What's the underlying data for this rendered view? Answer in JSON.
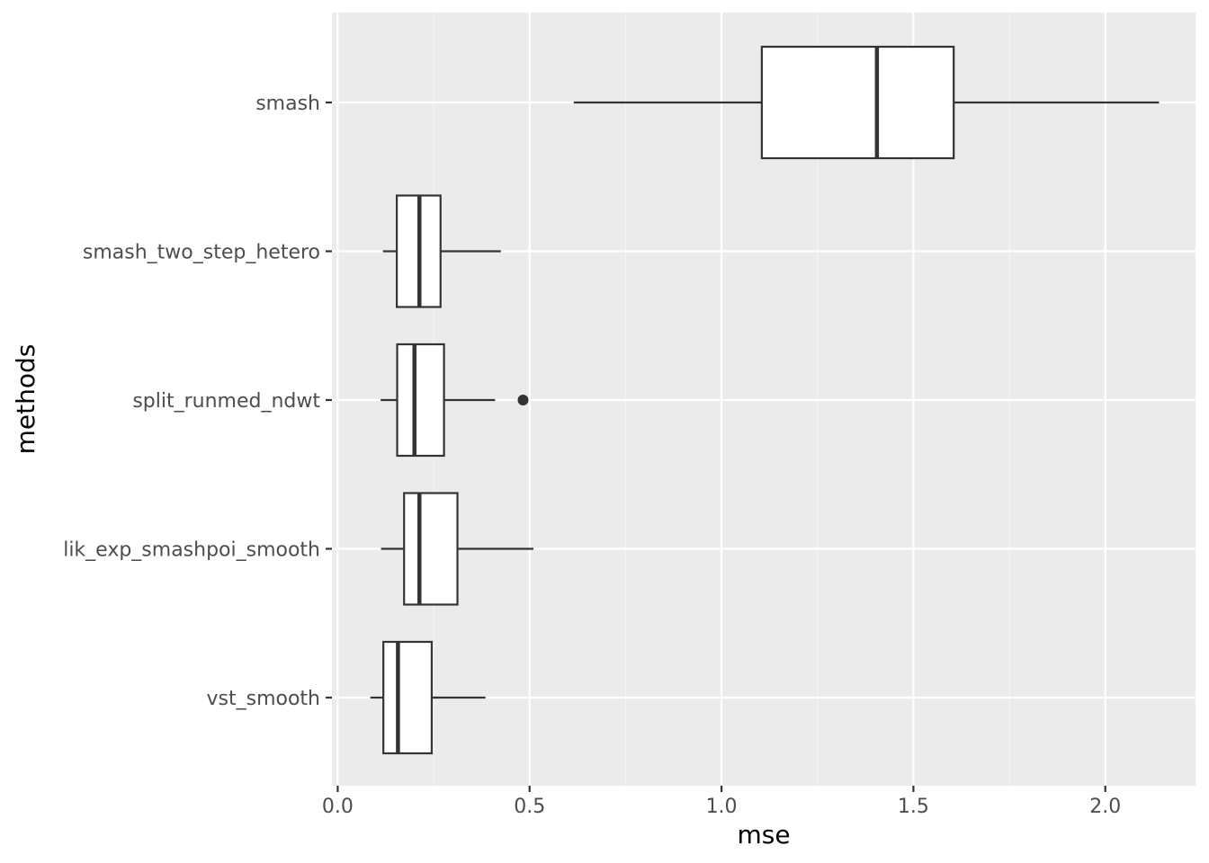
{
  "chart_data": {
    "type": "boxplot",
    "orientation": "horizontal",
    "xlabel": "mse",
    "ylabel": "methods",
    "xlim": [
      -0.015,
      2.235
    ],
    "x_ticks": [
      {
        "value": 0.0,
        "label": "0.0"
      },
      {
        "value": 0.5,
        "label": "0.5"
      },
      {
        "value": 1.0,
        "label": "1.0"
      },
      {
        "value": 1.5,
        "label": "1.5"
      },
      {
        "value": 2.0,
        "label": "2.0"
      }
    ],
    "x_minor_ticks": [
      0.25,
      0.75,
      1.25,
      1.75
    ],
    "categories": [
      "smash",
      "smash_two_step_hetero",
      "split_runmed_ndwt",
      "lik_exp_smashpoi_smooth",
      "vst_smooth"
    ],
    "boxes": [
      {
        "category": "smash",
        "whisker_low": 0.615,
        "q1": 1.105,
        "median": 1.405,
        "q3": 1.605,
        "whisker_high": 2.14,
        "outliers": []
      },
      {
        "category": "smash_two_step_hetero",
        "whisker_low": 0.118,
        "q1": 0.154,
        "median": 0.213,
        "q3": 0.268,
        "whisker_high": 0.425,
        "outliers": []
      },
      {
        "category": "split_runmed_ndwt",
        "whisker_low": 0.112,
        "q1": 0.155,
        "median": 0.2,
        "q3": 0.277,
        "whisker_high": 0.41,
        "outliers": [
          0.483
        ]
      },
      {
        "category": "lik_exp_smashpoi_smooth",
        "whisker_low": 0.113,
        "q1": 0.173,
        "median": 0.213,
        "q3": 0.312,
        "whisker_high": 0.51,
        "outliers": []
      },
      {
        "category": "vst_smooth",
        "whisker_low": 0.085,
        "q1": 0.119,
        "median": 0.157,
        "q3": 0.245,
        "whisker_high": 0.385,
        "outliers": []
      }
    ],
    "grid": true,
    "legend": "none",
    "colors": {
      "panel_background": "#ebebeb",
      "grid_major": "#ffffff",
      "grid_minor": "#f5f5f5",
      "box_fill": "#ffffff",
      "box_stroke": "#333333",
      "tick_label": "#4d4d4d",
      "axis_tick": "#333333"
    }
  }
}
